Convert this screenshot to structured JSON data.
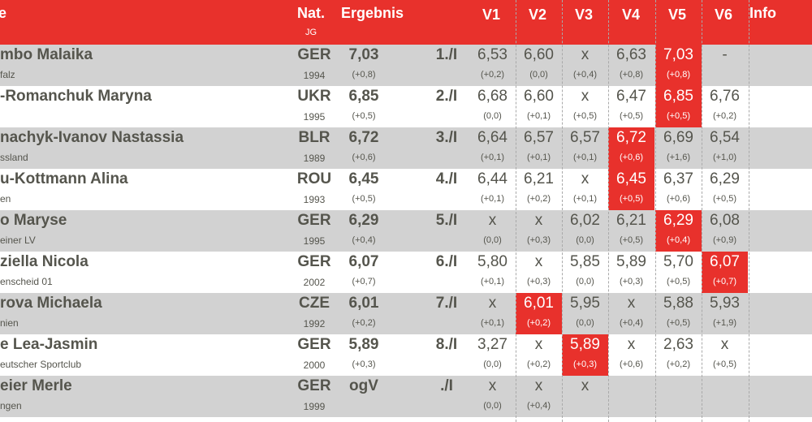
{
  "colors": {
    "accent": "#e8312c",
    "row_alt": "#d2d2d2",
    "text": "#55554d"
  },
  "header": {
    "name": "e",
    "nat": "Nat.",
    "jg": "JG",
    "ergebnis": "Ergebnis",
    "v1": "V1",
    "v2": "V2",
    "v3": "V3",
    "v4": "V4",
    "v5": "V5",
    "v6": "V6",
    "info": "Info"
  },
  "rows": [
    {
      "name": "mbo Malaika",
      "club": "falz",
      "nat": "GER",
      "year": "1994",
      "result": "7,03",
      "wind": "(+0,8)",
      "place": "1./I",
      "attempts": [
        [
          "6,53",
          "(+0,2)"
        ],
        [
          "6,60",
          "(0,0)"
        ],
        [
          "x",
          "(+0,4)"
        ],
        [
          "6,63",
          "(+0,8)"
        ],
        [
          "7,03",
          "(+0,8)"
        ],
        [
          "-",
          ""
        ]
      ],
      "best": 4
    },
    {
      "name": "-Romanchuk Maryna",
      "club": "",
      "nat": "UKR",
      "year": "1995",
      "result": "6,85",
      "wind": "(+0,5)",
      "place": "2./I",
      "attempts": [
        [
          "6,68",
          "(0,0)"
        ],
        [
          "6,60",
          "(+0,1)"
        ],
        [
          "x",
          "(+0,5)"
        ],
        [
          "6,47",
          "(+0,5)"
        ],
        [
          "6,85",
          "(+0,5)"
        ],
        [
          "6,76",
          "(+0,2)"
        ]
      ],
      "best": 4
    },
    {
      "name": "nachyk-Ivanov Nastassia",
      "club": "ssland",
      "nat": "BLR",
      "year": "1989",
      "result": "6,72",
      "wind": "(+0,6)",
      "place": "3./I",
      "attempts": [
        [
          "6,64",
          "(+0,1)"
        ],
        [
          "6,57",
          "(+0,1)"
        ],
        [
          "6,57",
          "(+0,1)"
        ],
        [
          "6,72",
          "(+0,6)"
        ],
        [
          "6,69",
          "(+1,6)"
        ],
        [
          "6,54",
          "(+1,0)"
        ]
      ],
      "best": 3
    },
    {
      "name": "u-Kottmann Alina",
      "club": "en",
      "nat": "ROU",
      "year": "1993",
      "result": "6,45",
      "wind": "(+0,5)",
      "place": "4./I",
      "attempts": [
        [
          "6,44",
          "(+0,1)"
        ],
        [
          "6,21",
          "(+0,2)"
        ],
        [
          "x",
          "(+0,1)"
        ],
        [
          "6,45",
          "(+0,5)"
        ],
        [
          "6,37",
          "(+0,6)"
        ],
        [
          "6,29",
          "(+0,5)"
        ]
      ],
      "best": 3
    },
    {
      "name": "o Maryse",
      "club": "einer LV",
      "nat": "GER",
      "year": "1995",
      "result": "6,29",
      "wind": "(+0,4)",
      "place": "5./I",
      "attempts": [
        [
          "x",
          "(0,0)"
        ],
        [
          "x",
          "(+0,3)"
        ],
        [
          "6,02",
          "(0,0)"
        ],
        [
          "6,21",
          "(+0,5)"
        ],
        [
          "6,29",
          "(+0,4)"
        ],
        [
          "6,08",
          "(+0,9)"
        ]
      ],
      "best": 4
    },
    {
      "name": "ziella Nicola",
      "club": "enscheid 01",
      "nat": "GER",
      "year": "2002",
      "result": "6,07",
      "wind": "(+0,7)",
      "place": "6./I",
      "attempts": [
        [
          "5,80",
          "(+0,1)"
        ],
        [
          "x",
          "(+0,3)"
        ],
        [
          "5,85",
          "(0,0)"
        ],
        [
          "5,89",
          "(+0,3)"
        ],
        [
          "5,70",
          "(+0,5)"
        ],
        [
          "6,07",
          "(+0,7)"
        ]
      ],
      "best": 5
    },
    {
      "name": "rova Michaela",
      "club": "nien",
      "nat": "CZE",
      "year": "1992",
      "result": "6,01",
      "wind": "(+0,2)",
      "place": "7./I",
      "attempts": [
        [
          "x",
          "(+0,1)"
        ],
        [
          "6,01",
          "(+0,2)"
        ],
        [
          "5,95",
          "(0,0)"
        ],
        [
          "x",
          "(+0,4)"
        ],
        [
          "5,88",
          "(+0,5)"
        ],
        [
          "5,93",
          "(+1,9)"
        ]
      ],
      "best": 1
    },
    {
      "name": "e Lea-Jasmin",
      "club": "eutscher Sportclub",
      "nat": "GER",
      "year": "2000",
      "result": "5,89",
      "wind": "(+0,3)",
      "place": "8./I",
      "attempts": [
        [
          "3,27",
          "(0,0)"
        ],
        [
          "x",
          "(+0,2)"
        ],
        [
          "5,89",
          "(+0,3)"
        ],
        [
          "x",
          "(+0,6)"
        ],
        [
          "2,63",
          "(+0,2)"
        ],
        [
          "x",
          "(+0,5)"
        ]
      ],
      "best": 2
    },
    {
      "name": "eier Merle",
      "club": "ngen",
      "nat": "GER",
      "year": "1999",
      "result": "ogV",
      "wind": "",
      "place": "./I",
      "attempts": [
        [
          "x",
          "(0,0)"
        ],
        [
          "x",
          "(+0,4)"
        ],
        [
          "x",
          ""
        ],
        [
          "",
          ""
        ],
        [
          "",
          ""
        ],
        [
          "",
          ""
        ]
      ],
      "best": -1
    }
  ]
}
